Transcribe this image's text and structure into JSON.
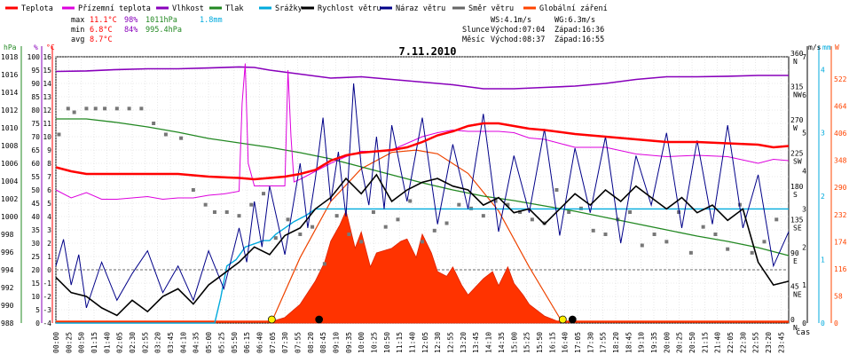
{
  "chart_data": {
    "type": "line",
    "title": "7.11.2010",
    "xlabel": "čas",
    "legend": {
      "placement": "top",
      "items": [
        {
          "name": "Teplota",
          "color": "#ff0000"
        },
        {
          "name": "Přízemní teplota",
          "color": "#dd00dd"
        },
        {
          "name": "Vlhkost",
          "color": "#8800bb"
        },
        {
          "name": "Tlak",
          "color": "#228822"
        },
        {
          "name": "Srážky",
          "color": "#00aadd"
        },
        {
          "name": "Rychlost větru",
          "color": "#000000"
        },
        {
          "name": "Náraz větru",
          "color": "#000088"
        },
        {
          "name": "Směr větru",
          "color": "#666666"
        },
        {
          "name": "Globální záření",
          "color": "#ff4400"
        }
      ]
    },
    "stats": {
      "rows": [
        {
          "label": "max",
          "temp": "11.1°C",
          "hum": "98%",
          "pres": "1011hPa",
          "rain": "1.8mm"
        },
        {
          "label": "min",
          "temp": "6.8°C",
          "hum": "84%",
          "pres": "995.4hPa",
          "rain": ""
        },
        {
          "label": "avg",
          "temp": "8.7°C",
          "hum": "",
          "pres": "",
          "rain": ""
        }
      ]
    },
    "wind_info": {
      "ws": "WS:4.1m/s",
      "wg": "WG:6.3m/s"
    },
    "sun": {
      "label": "Slunce",
      "rise_label": "Východ:07:04",
      "set_label": "Západ:16:36"
    },
    "moon": {
      "label": "Měsíc",
      "rise_label": "Východ:08:37",
      "set_label": "Západ:16:55"
    },
    "axes": {
      "pressure": {
        "unit": "hPa",
        "min": 988,
        "max": 1018,
        "step": 2
      },
      "humidity": {
        "unit": "%",
        "min": 0,
        "max": 100,
        "step": 5
      },
      "temperature": {
        "unit": "°C",
        "min": -4,
        "max": 16,
        "step": 1
      },
      "direction": {
        "ticks": [
          {
            "v": 360,
            "l": "N"
          },
          {
            "v": 315,
            "l": "NW"
          },
          {
            "v": 270,
            "l": "W"
          },
          {
            "v": 225,
            "l": "SW"
          },
          {
            "v": 180,
            "l": "S"
          },
          {
            "v": 135,
            "l": "SE"
          },
          {
            "v": 90,
            "l": "E"
          },
          {
            "v": 45,
            "l": "NE"
          },
          {
            "v": 0,
            "l": "N"
          }
        ]
      },
      "wind": {
        "unit": "m/s",
        "min": 0,
        "max": 7,
        "step": 1
      },
      "rain": {
        "unit": "mm",
        "ticks": [
          0,
          1,
          2,
          3,
          4
        ]
      },
      "radiation": {
        "unit": "W",
        "ticks": [
          0,
          58,
          116,
          174,
          232,
          290,
          348,
          406,
          464,
          522
        ]
      },
      "time_ticks": [
        "00:00",
        "00:25",
        "00:50",
        "01:15",
        "01:40",
        "02:05",
        "02:30",
        "02:55",
        "03:20",
        "03:45",
        "04:10",
        "04:35",
        "05:00",
        "05:25",
        "05:50",
        "06:15",
        "06:40",
        "07:05",
        "07:30",
        "07:55",
        "08:20",
        "08:45",
        "09:10",
        "09:35",
        "10:00",
        "10:25",
        "10:50",
        "11:15",
        "11:40",
        "12:05",
        "12:30",
        "12:55",
        "13:20",
        "13:45",
        "14:10",
        "14:35",
        "15:00",
        "15:25",
        "15:50",
        "16:15",
        "16:40",
        "17:05",
        "17:30",
        "17:55",
        "18:20",
        "18:45",
        "19:10",
        "19:35",
        "20:00",
        "20:25",
        "20:50",
        "21:15",
        "21:40",
        "22:05",
        "22:30",
        "22:55",
        "23:20",
        "23:45"
      ]
    },
    "series": {
      "temperature": {
        "name": "Teplota",
        "x": [
          0,
          0.5,
          1,
          2,
          3,
          4,
          5,
          6,
          6.5,
          7,
          7.5,
          8,
          8.5,
          9,
          9.5,
          10,
          10.5,
          11,
          11.5,
          12,
          12.5,
          13,
          13.5,
          14,
          14.5,
          15,
          15.5,
          16,
          17,
          18,
          19,
          20,
          21,
          22,
          23,
          23.5,
          24
        ],
        "y": [
          7.7,
          7.4,
          7.2,
          7.2,
          7.2,
          7.2,
          7.0,
          6.9,
          6.8,
          6.9,
          7.0,
          7.2,
          7.5,
          8.2,
          8.6,
          8.8,
          8.9,
          9.0,
          9.2,
          9.6,
          10.1,
          10.4,
          10.8,
          11.0,
          11.0,
          10.8,
          10.6,
          10.5,
          10.2,
          10.0,
          9.8,
          9.6,
          9.6,
          9.5,
          9.4,
          9.2,
          9.3
        ]
      },
      "ground_temperature": {
        "name": "Přízemní teplota",
        "x": [
          0,
          0.5,
          1,
          1.5,
          2,
          2.5,
          3,
          3.5,
          4,
          4.5,
          5,
          5.5,
          6,
          6.1,
          6.2,
          6.3,
          6.5,
          7,
          7.5,
          7.6,
          7.7,
          7.8,
          8,
          8.5,
          9,
          9.5,
          10,
          10.5,
          11,
          11.5,
          12,
          12.5,
          13,
          13.5,
          14,
          14.5,
          15,
          15.5,
          16,
          16.5,
          17,
          18,
          19,
          20,
          21,
          22,
          23,
          23.5,
          24
        ],
        "y": [
          6.0,
          5.4,
          5.8,
          5.3,
          5.3,
          5.4,
          5.5,
          5.3,
          5.4,
          5.4,
          5.6,
          5.7,
          5.9,
          12.5,
          15.5,
          8,
          6.3,
          6.3,
          6.3,
          15.0,
          10,
          6.6,
          6.8,
          7.4,
          8.0,
          8.5,
          8.9,
          8.9,
          9.0,
          9.5,
          10.0,
          10.3,
          10.5,
          10.4,
          10.4,
          10.4,
          10.3,
          9.9,
          9.8,
          9.5,
          9.2,
          9.2,
          8.7,
          8.5,
          8.6,
          8.5,
          8.0,
          8.3,
          8.2
        ]
      },
      "humidity": {
        "name": "Vlhkost",
        "x": [
          0,
          1,
          2,
          3,
          4,
          5,
          6,
          6.5,
          7,
          8,
          9,
          10,
          11,
          12,
          13,
          14,
          15,
          16,
          17,
          18,
          19,
          20,
          21,
          22,
          23,
          24
        ],
        "y": [
          94.5,
          94.7,
          95.2,
          95.5,
          95.5,
          95.8,
          96.2,
          96.0,
          95.0,
          93.5,
          92.0,
          92.5,
          91.5,
          90.5,
          89.5,
          88.0,
          88.0,
          88.5,
          89.0,
          90.0,
          91.5,
          92.5,
          92.5,
          92.7,
          93.0,
          93.0
        ]
      },
      "pressure": {
        "name": "Tlak",
        "x": [
          0,
          1,
          2,
          3,
          4,
          5,
          6,
          7,
          8,
          9,
          10,
          11,
          12,
          13,
          14,
          15,
          16,
          17,
          18,
          19,
          20,
          21,
          22,
          23,
          24
        ],
        "y": [
          1011.0,
          1011.0,
          1010.6,
          1010.1,
          1009.5,
          1008.8,
          1008.3,
          1007.8,
          1007.2,
          1006.5,
          1005.6,
          1004.7,
          1003.8,
          1003.0,
          1002.3,
          1001.8,
          1001.2,
          1000.6,
          999.9,
          999.2,
          998.5,
          997.8,
          997.2,
          996.5,
          995.6
        ]
      },
      "rain_cumulative": {
        "name": "Srážky",
        "x": [
          0,
          5.2,
          5.4,
          5.6,
          5.9,
          6.2,
          6.8,
          7.0,
          7.2,
          7.5,
          7.8,
          8.2,
          8.5,
          9.0,
          24
        ],
        "y": [
          0,
          0,
          0.4,
          0.9,
          1.0,
          1.2,
          1.3,
          1.3,
          1.4,
          1.5,
          1.6,
          1.7,
          1.8,
          1.8,
          1.8
        ]
      },
      "wind_speed": {
        "name": "Rychlost větru",
        "x": [
          0,
          0.5,
          1,
          1.5,
          2,
          2.5,
          3,
          3.5,
          4,
          4.5,
          5,
          5.5,
          6,
          6.5,
          7,
          7.5,
          8,
          8.5,
          9,
          9.5,
          10,
          10.5,
          11,
          11.5,
          12,
          12.5,
          13,
          13.5,
          14,
          14.5,
          15,
          15.5,
          16,
          16.5,
          17,
          17.5,
          18,
          18.5,
          19,
          19.5,
          20,
          20.5,
          21,
          21.5,
          22,
          22.5,
          23,
          23.5,
          24
        ],
        "y": [
          1.2,
          0.8,
          0.7,
          0.4,
          0.2,
          0.6,
          0.3,
          0.7,
          0.9,
          0.5,
          1.0,
          1.3,
          1.6,
          2.0,
          1.8,
          2.3,
          2.5,
          3.0,
          3.3,
          3.8,
          3.4,
          3.9,
          3.2,
          3.5,
          3.7,
          3.8,
          3.6,
          3.5,
          3.1,
          3.3,
          2.9,
          3.0,
          2.6,
          3.0,
          3.4,
          3.1,
          3.5,
          3.2,
          3.6,
          3.3,
          3.0,
          3.3,
          2.9,
          3.1,
          2.7,
          3.0,
          1.6,
          1.0,
          1.1
        ]
      },
      "wind_gust": {
        "name": "Náraz větru",
        "x": [
          0,
          0.25,
          0.5,
          0.75,
          1,
          1.5,
          2,
          2.5,
          3,
          3.5,
          4,
          4.5,
          5,
          5.5,
          6,
          6.25,
          6.5,
          6.75,
          7,
          7.5,
          8,
          8.25,
          8.5,
          8.75,
          9,
          9.25,
          9.5,
          9.75,
          10,
          10.25,
          10.5,
          10.75,
          11,
          11.5,
          12,
          12.5,
          13,
          13.5,
          14,
          14.5,
          15,
          15.5,
          16,
          16.5,
          17,
          17.5,
          18,
          18.5,
          19,
          19.5,
          20,
          20.5,
          21,
          21.5,
          22,
          22.5,
          23,
          23.5,
          24
        ],
        "y": [
          1.5,
          2.2,
          1.0,
          1.8,
          0.4,
          1.6,
          0.6,
          1.3,
          1.9,
          0.8,
          1.5,
          0.6,
          1.9,
          0.9,
          2.5,
          1.6,
          3.2,
          2.0,
          3.6,
          1.8,
          4.2,
          2.5,
          3.8,
          5.4,
          3.2,
          4.5,
          2.8,
          6.3,
          4.1,
          3.1,
          4.9,
          3.0,
          5.2,
          3.2,
          5.4,
          2.6,
          4.7,
          3.0,
          5.5,
          2.4,
          4.4,
          2.9,
          5.1,
          2.3,
          4.6,
          2.9,
          4.9,
          2.1,
          4.4,
          3.1,
          5.0,
          2.5,
          4.8,
          2.6,
          5.2,
          2.5,
          3.9,
          1.5,
          2.4
        ]
      },
      "wind_direction": {
        "name": "Směr větru",
        "x": [
          0.1,
          0.4,
          0.6,
          1.0,
          1.3,
          1.6,
          2.0,
          2.4,
          2.8,
          3.2,
          3.6,
          4.1,
          4.5,
          4.9,
          5.2,
          5.6,
          6.0,
          6.4,
          6.8,
          7.2,
          7.6,
          8.0,
          8.4,
          8.8,
          9.2,
          9.6,
          10.0,
          10.4,
          10.8,
          11.2,
          11.6,
          12.0,
          12.4,
          12.8,
          13.2,
          13.6,
          14.0,
          14.4,
          14.8,
          15.2,
          15.6,
          16.0,
          16.4,
          16.8,
          17.2,
          17.6,
          18.0,
          18.4,
          18.8,
          19.2,
          19.6,
          20.0,
          20.4,
          20.8,
          21.2,
          21.6,
          22.0,
          22.4,
          22.8,
          23.2,
          23.6
        ],
        "y": [
          255,
          290,
          285,
          290,
          290,
          290,
          290,
          290,
          290,
          270,
          255,
          250,
          180,
          160,
          150,
          150,
          145,
          160,
          175,
          115,
          140,
          120,
          130,
          80,
          145,
          120,
          110,
          150,
          130,
          140,
          165,
          110,
          125,
          135,
          160,
          155,
          145,
          165,
          160,
          150,
          140,
          135,
          180,
          150,
          155,
          125,
          120,
          140,
          150,
          105,
          120,
          110,
          150,
          95,
          130,
          120,
          100,
          160,
          95,
          110,
          140
        ]
      },
      "radiation": {
        "name": "Globální záření",
        "x": [
          7.0,
          7.5,
          8.0,
          8.5,
          8.8,
          9.0,
          9.3,
          9.5,
          9.8,
          10.0,
          10.3,
          10.5,
          11.0,
          11.3,
          11.5,
          11.8,
          12.0,
          12.3,
          12.5,
          12.8,
          13.0,
          13.3,
          13.5,
          14.0,
          14.3,
          14.5,
          14.8,
          15.0,
          15.3,
          15.5,
          16.0,
          16.5
        ],
        "y": [
          2,
          12,
          40,
          90,
          130,
          175,
          210,
          240,
          160,
          195,
          120,
          150,
          160,
          175,
          180,
          140,
          190,
          150,
          110,
          100,
          120,
          80,
          60,
          95,
          110,
          80,
          120,
          85,
          60,
          40,
          15,
          2
        ]
      },
      "radiation_theoretical": {
        "x": [
          7.05,
          8,
          9,
          10,
          11,
          11.8,
          12.5,
          13.5,
          14.5,
          15.5,
          16.6
        ],
        "y": [
          0,
          140,
          260,
          330,
          365,
          370,
          362,
          320,
          240,
          120,
          0
        ]
      }
    },
    "markers": {
      "sunrise_hour": 7.07,
      "sunset_hour": 16.6,
      "moonrise_hour": 8.62,
      "moonset_hour": 16.92
    }
  }
}
